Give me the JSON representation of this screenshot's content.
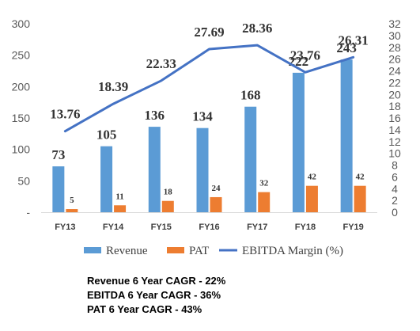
{
  "chart_data": {
    "type": "bar",
    "categories": [
      "FY13",
      "FY14",
      "FY15",
      "FY16",
      "FY17",
      "FY18",
      "FY19"
    ],
    "series": [
      {
        "name": "Revenue",
        "type": "bar",
        "axis": "left",
        "color": "#5B9BD5",
        "values": [
          73,
          105,
          136,
          134,
          168,
          222,
          243
        ]
      },
      {
        "name": "PAT",
        "type": "bar",
        "axis": "left",
        "color": "#ED7D31",
        "values": [
          5,
          11,
          18,
          24,
          32,
          42,
          42
        ]
      },
      {
        "name": "EBITDA Margin (%)",
        "type": "line",
        "axis": "right",
        "color": "#4472C4",
        "values": [
          13.76,
          18.39,
          22.33,
          27.69,
          28.36,
          23.76,
          26.31
        ]
      }
    ],
    "y_left": {
      "min": 0,
      "max": 300,
      "ticks": [
        "-",
        "50",
        "100",
        "150",
        "200",
        "250",
        "300"
      ]
    },
    "y_right": {
      "min": 0,
      "max": 32,
      "ticks": [
        "0",
        "2",
        "4",
        "6",
        "8",
        "10",
        "12",
        "14",
        "16",
        "18",
        "20",
        "22",
        "24",
        "26",
        "28",
        "30",
        "32"
      ]
    },
    "grid": false,
    "legend": "bottom"
  },
  "notes": [
    "Revenue 6 Year CAGR - 22%",
    "EBITDA 6 Year CAGR - 36%",
    "PAT 6 Year CAGR - 43%"
  ]
}
